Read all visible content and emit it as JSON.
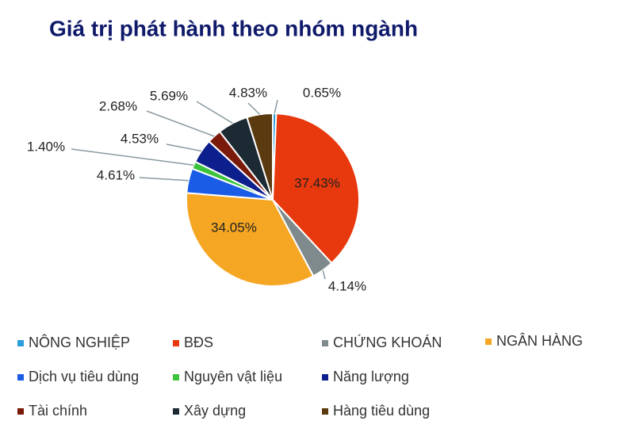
{
  "chart_data": {
    "type": "pie",
    "title": "Giá trị phát hành theo nhóm ngành",
    "categories": [
      "NÔNG NGHIỆP",
      "BĐS",
      "CHỨNG KHOÁN",
      "NGÂN HÀNG",
      "Dịch vụ tiêu dùng",
      "Nguyên vật liệu",
      "Năng lượng",
      "Tài chính",
      "Xây dựng",
      "Hàng tiêu dùng"
    ],
    "values": [
      0.65,
      37.43,
      4.14,
      34.05,
      4.61,
      1.4,
      4.53,
      2.68,
      5.69,
      4.83
    ],
    "value_labels": [
      "0.65%",
      "37.43%",
      "4.14%",
      "34.05%",
      "4.61%",
      "1.40%",
      "4.53%",
      "2.68%",
      "5.69%",
      "4.83%"
    ],
    "colors": [
      "#2a9fdc",
      "#e8380d",
      "#7f8a8c",
      "#f5a623",
      "#1a5ce6",
      "#3cc43c",
      "#0d1f8c",
      "#7a1a0a",
      "#1c2a33",
      "#5c3a10"
    ]
  }
}
